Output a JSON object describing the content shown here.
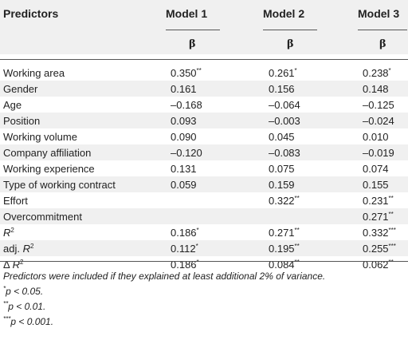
{
  "header": {
    "predictors_label": "Predictors",
    "model_labels": [
      "Model 1",
      "Model 2",
      "Model 3"
    ],
    "beta_symbol": "β"
  },
  "rows": [
    {
      "label": "Working area",
      "m1": "0.350",
      "m1_sig": "**",
      "m2": "0.261",
      "m2_sig": "*",
      "m3": "0.238",
      "m3_sig": "*"
    },
    {
      "label": "Gender",
      "m1": "0.161",
      "m1_sig": "",
      "m2": "0.156",
      "m2_sig": "",
      "m3": "0.148",
      "m3_sig": ""
    },
    {
      "label": "Age",
      "m1": "–0.168",
      "m1_sig": "",
      "m2": "–0.064",
      "m2_sig": "",
      "m3": "–0.125",
      "m3_sig": ""
    },
    {
      "label": "Position",
      "m1": "0.093",
      "m1_sig": "",
      "m2": "–0.003",
      "m2_sig": "",
      "m3": "–0.024",
      "m3_sig": ""
    },
    {
      "label": "Working volume",
      "m1": "0.090",
      "m1_sig": "",
      "m2": "0.045",
      "m2_sig": "",
      "m3": "0.010",
      "m3_sig": ""
    },
    {
      "label": "Company affiliation",
      "m1": "–0.120",
      "m1_sig": "",
      "m2": "–0.083",
      "m2_sig": "",
      "m3": "–0.019",
      "m3_sig": ""
    },
    {
      "label": "Working experience",
      "m1": "0.131",
      "m1_sig": "",
      "m2": "0.075",
      "m2_sig": "",
      "m3": "0.074",
      "m3_sig": ""
    },
    {
      "label": "Type of working contract",
      "m1": "0.059",
      "m1_sig": "",
      "m2": "0.159",
      "m2_sig": "",
      "m3": "0.155",
      "m3_sig": ""
    },
    {
      "label": "Effort",
      "m1": "",
      "m1_sig": "",
      "m2": "0.322",
      "m2_sig": "**",
      "m3": "0.231",
      "m3_sig": "**"
    },
    {
      "label": "Overcommitment",
      "m1": "",
      "m1_sig": "",
      "m2": "",
      "m2_sig": "",
      "m3": "0.271",
      "m3_sig": "**"
    }
  ],
  "stats": [
    {
      "prefix": "",
      "var": "R",
      "exp": "2",
      "m1": "0.186",
      "m1_sig": "*",
      "m2": "0.271",
      "m2_sig": "**",
      "m3": "0.332",
      "m3_sig": "***"
    },
    {
      "prefix": "adj. ",
      "var": "R",
      "exp": "2",
      "m1": "0.112",
      "m1_sig": "*",
      "m2": "0.195",
      "m2_sig": "**",
      "m3": "0.255",
      "m3_sig": "***"
    },
    {
      "prefix": "Δ ",
      "var": "R",
      "exp": "2",
      "m1": "0.186",
      "m1_sig": "*",
      "m2": "0.084",
      "m2_sig": "**",
      "m3": "0.062",
      "m3_sig": "**"
    }
  ],
  "footnotes": {
    "note": "Predictors were included if they explained at least additional 2% of variance.",
    "f1_marker": "*",
    "f1_text": "p < 0.05.",
    "f2_marker": "**",
    "f2_text": "p < 0.01.",
    "f3_marker": "***",
    "f3_text": "p < 0.001."
  }
}
